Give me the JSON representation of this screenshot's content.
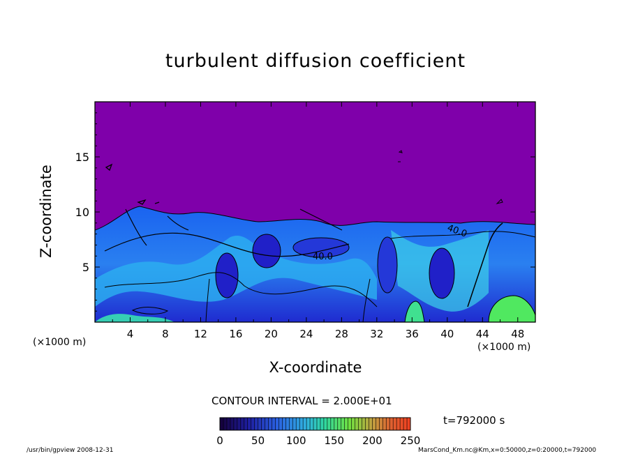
{
  "chart_data": {
    "type": "heatmap",
    "title": "turbulent diffusion coefficient",
    "xlabel": "X-coordinate",
    "ylabel": "Z-coordinate",
    "x_unit": "(×1000 m)",
    "x_unit_right": "(×1000 m)",
    "xlim": [
      0,
      50
    ],
    "ylim": [
      0,
      20
    ],
    "x_ticks": [
      4,
      8,
      12,
      16,
      20,
      24,
      28,
      32,
      36,
      40,
      44,
      48
    ],
    "x_tick_labels": [
      "4",
      "8",
      "12",
      "16",
      "20",
      "24",
      "28",
      "32",
      "36",
      "40",
      "44",
      "48"
    ],
    "y_ticks": [
      5,
      10,
      15
    ],
    "y_tick_labels": [
      "5",
      "10",
      "15"
    ],
    "contour_interval_text": "CONTOUR INTERVAL = 2.000E+01",
    "contour_labels": [
      "40.0",
      "40.0"
    ],
    "colorbar": {
      "range": [
        0,
        250
      ],
      "ticks": [
        0,
        50,
        100,
        150,
        200,
        250
      ],
      "tick_labels": [
        "0",
        "50",
        "100",
        "150",
        "200",
        "250"
      ]
    },
    "time_text": "t=792000 s",
    "background_value_color": "#7f00aa",
    "field_colors": [
      "#7f00aa",
      "#1f2bd0",
      "#1a63f0",
      "#28a8f0",
      "#30e0e0",
      "#40e890",
      "#60f040",
      "#c0f080",
      "#e08080"
    ]
  },
  "footer": {
    "left": "/usr/bin/gpview   2008-12-31",
    "right": "MarsCond_Km.nc@Km,x=0:50000,z=0:20000,t=792000"
  }
}
